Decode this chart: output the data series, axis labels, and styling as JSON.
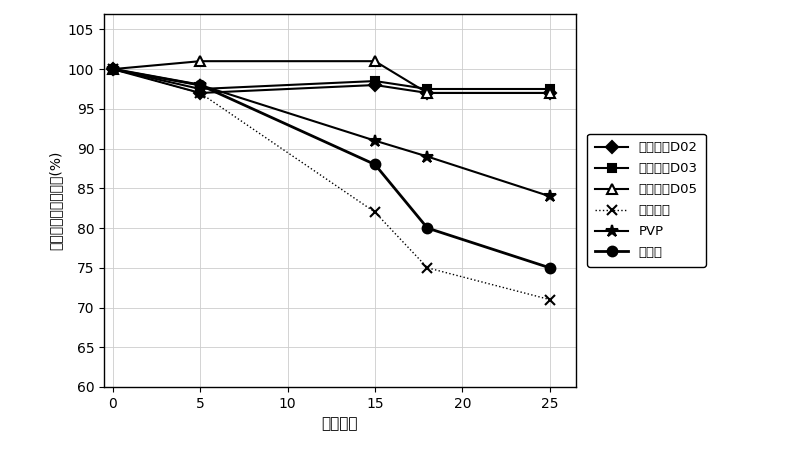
{
  "title": "",
  "xlabel": "经过天数",
  "ylabel": "相对于初始值的变化(%)",
  "xlim": [
    -0.5,
    26.5
  ],
  "ylim": [
    60,
    107
  ],
  "xticks": [
    0,
    5,
    10,
    15,
    20,
    25
  ],
  "yticks": [
    60,
    65,
    70,
    75,
    80,
    85,
    90,
    95,
    100,
    105
  ],
  "series": [
    {
      "label": "利匹德尔D02",
      "x": [
        0,
        5,
        15,
        18,
        25
      ],
      "y": [
        100,
        97,
        98,
        97,
        97
      ],
      "color": "#000000",
      "marker": "D",
      "markersize": 6,
      "linewidth": 1.5,
      "linestyle": "-",
      "markerfacecolor": "#000000"
    },
    {
      "label": "利匹德尔D03",
      "x": [
        0,
        5,
        15,
        18,
        25
      ],
      "y": [
        100,
        97.5,
        98.5,
        97.5,
        97.5
      ],
      "color": "#000000",
      "marker": "s",
      "markersize": 6,
      "linewidth": 1.5,
      "linestyle": "-",
      "markerfacecolor": "#000000"
    },
    {
      "label": "利匹德尔D05",
      "x": [
        0,
        5,
        15,
        18,
        25
      ],
      "y": [
        100,
        101,
        101,
        97,
        97
      ],
      "color": "#000000",
      "marker": "^",
      "markersize": 7,
      "linewidth": 1.5,
      "linestyle": "-",
      "markerfacecolor": "#ffffff"
    },
    {
      "label": "支链淀粉",
      "x": [
        0,
        5,
        15,
        18,
        25
      ],
      "y": [
        100,
        97,
        82,
        75,
        71
      ],
      "color": "#000000",
      "marker": "x",
      "markersize": 7,
      "linewidth": 1,
      "linestyle": ":",
      "markerfacecolor": "#000000"
    },
    {
      "label": "PVP",
      "x": [
        0,
        5,
        15,
        18,
        25
      ],
      "y": [
        100,
        98,
        91,
        89,
        84
      ],
      "color": "#000000",
      "marker": "*",
      "markersize": 9,
      "linewidth": 1.5,
      "linestyle": "-",
      "markerfacecolor": "#000000"
    },
    {
      "label": "葡聚糖",
      "x": [
        0,
        5,
        15,
        18,
        25
      ],
      "y": [
        100,
        98,
        88,
        80,
        75
      ],
      "color": "#000000",
      "marker": "o",
      "markersize": 7,
      "linewidth": 2,
      "linestyle": "-",
      "markerfacecolor": "#000000"
    }
  ],
  "background_color": "#ffffff",
  "grid": true
}
